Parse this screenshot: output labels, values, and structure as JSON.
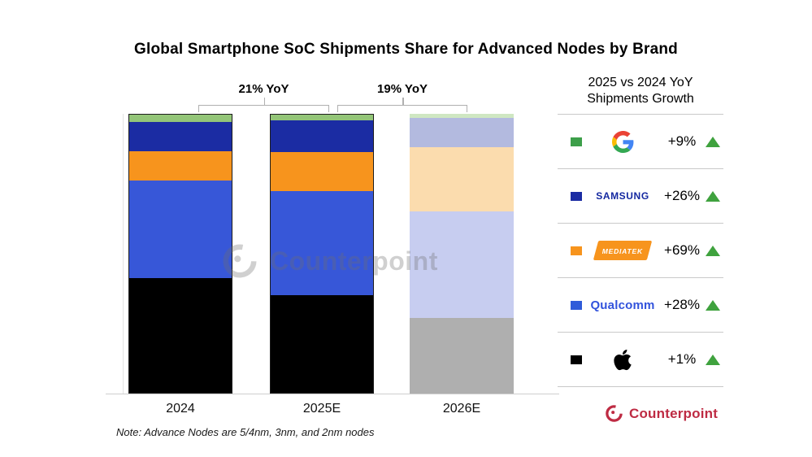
{
  "title": "Global Smartphone SoC Shipments Share for Advanced Nodes by Brand",
  "watermark": {
    "text": "Counterpoint"
  },
  "footer_note": "Note: Advance Nodes are 5/4nm, 3nm, and 2nm nodes",
  "footer_logo": {
    "text": "Counterpoint",
    "color": "#be2b43"
  },
  "legend": {
    "header_line1": "2025 vs 2024 YoY",
    "header_line2": "Shipments Growth",
    "up_triangle_color": "#3fa23e",
    "rows": [
      {
        "brand": "Google",
        "logo": "google-g-logo",
        "growth": "+9%",
        "swatch": "#3d9f4a",
        "direction": "up"
      },
      {
        "brand": "Samsung",
        "logo_text": "SAMSUNG",
        "logo_color": "#1428a0",
        "growth": "+26%",
        "swatch": "#1b2ca3",
        "direction": "up"
      },
      {
        "brand": "MediaTek",
        "logo_text": "MEDIATEK",
        "logo_bg": "#f7941d",
        "growth": "+69%",
        "swatch": "#f7941d",
        "direction": "up"
      },
      {
        "brand": "Qualcomm",
        "logo_text": "Qualcomm",
        "logo_color": "#3253dc",
        "growth": "+28%",
        "swatch": "#2f5bd9",
        "direction": "up"
      },
      {
        "brand": "Apple",
        "logo": "apple-logo",
        "growth": "+1%",
        "swatch": "#000000",
        "direction": "up"
      }
    ]
  },
  "chart_data": {
    "type": "bar",
    "subtype": "100%-stacked-column",
    "unit": "percent share of shipments",
    "title": "Global Smartphone SoC Shipments Share for Advanced Nodes by Brand",
    "categories": [
      "2024",
      "2025E",
      "2026E"
    ],
    "estimated_category_index": 2,
    "stack_order_top_to_bottom": [
      "Google",
      "Samsung",
      "MediaTek",
      "Qualcomm",
      "Apple"
    ],
    "series": [
      {
        "name": "Google",
        "color": "#93c578",
        "muted_color": "#cfe7c2",
        "values": [
          2.5,
          2.0,
          1.5
        ]
      },
      {
        "name": "Samsung",
        "color": "#1b2ca3",
        "muted_color": "#b3badf",
        "values": [
          10.7,
          11.5,
          10.5
        ]
      },
      {
        "name": "MediaTek",
        "color": "#f7941d",
        "muted_color": "#fbdcae",
        "values": [
          10.5,
          14.0,
          23.0
        ]
      },
      {
        "name": "Qualcomm",
        "color": "#3757d8",
        "muted_color": "#c7cdf0",
        "values": [
          35.0,
          37.5,
          38.0
        ]
      },
      {
        "name": "Apple",
        "color": "#000000",
        "muted_color": "#afafaf",
        "values": [
          41.3,
          35.0,
          27.0
        ]
      }
    ],
    "annotations": [
      {
        "label": "21% YoY",
        "between": [
          "2024",
          "2025E"
        ]
      },
      {
        "label": "19% YoY",
        "between": [
          "2025E",
          "2026E"
        ]
      }
    ],
    "ylim": [
      0,
      100
    ],
    "grid": false,
    "y_axis_ticks": "none",
    "legend_position": "right"
  }
}
